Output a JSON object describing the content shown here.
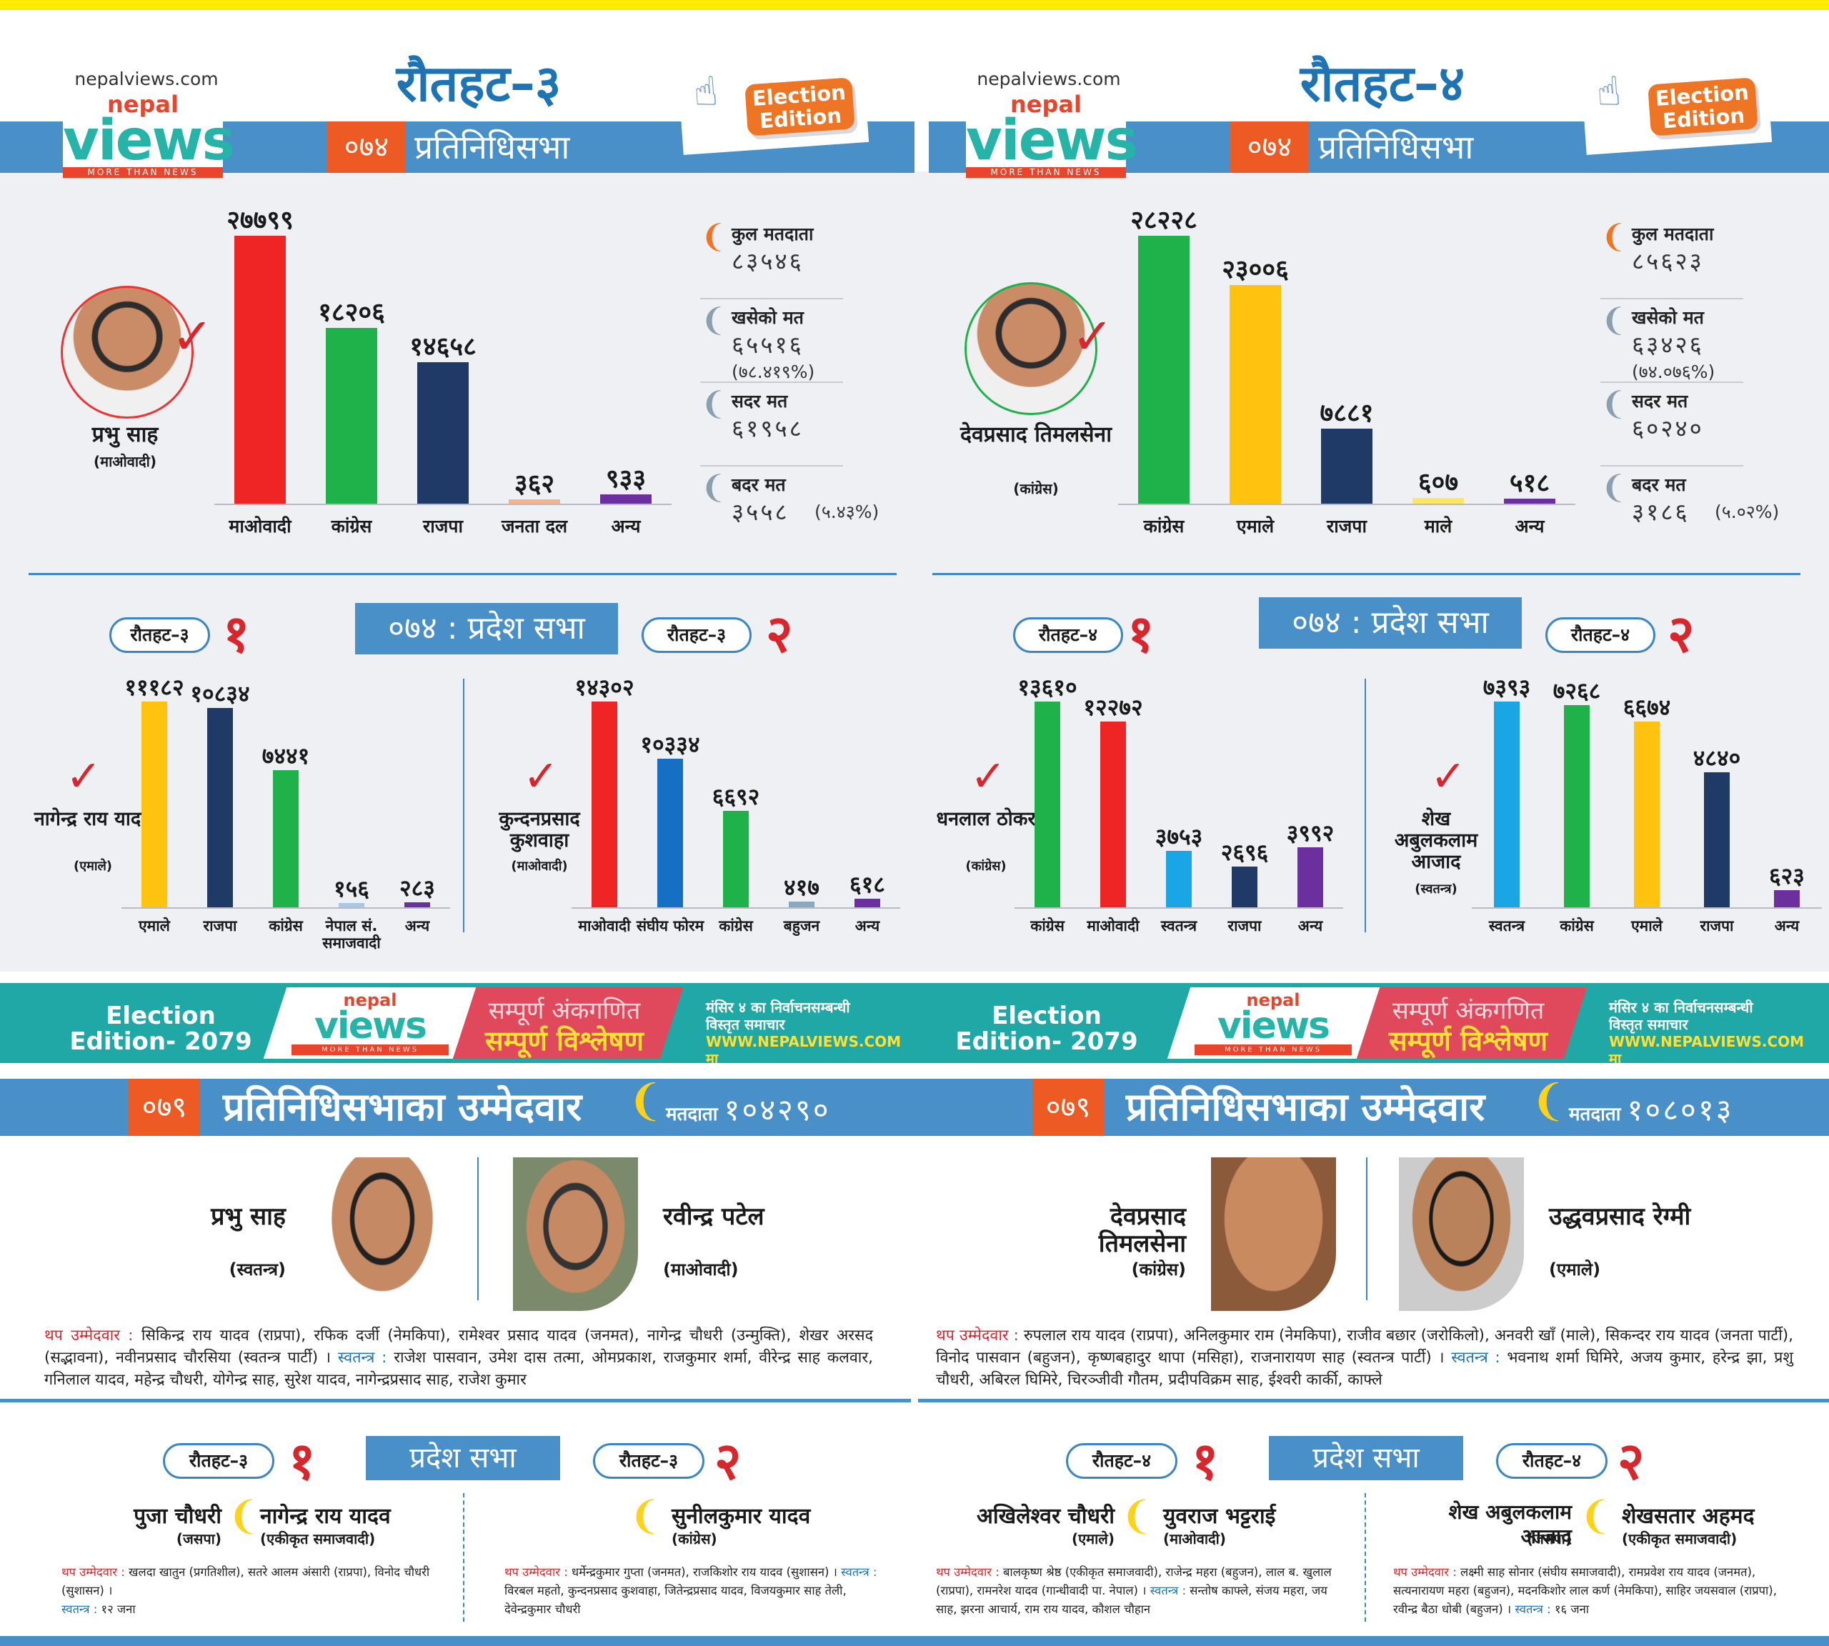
{
  "site": "nepalviews.com",
  "logo": {
    "nepal": "nepal",
    "views": "views",
    "tagline": "MORE THAN NEWS"
  },
  "election_edition": "Election Edition",
  "left": {
    "title": "रौतहट–३",
    "year": "०७४",
    "house_label": "प्रतिनिधिसभा",
    "winner": {
      "name": "प्रभु साह",
      "party": "(माओवादी)"
    },
    "chart_data": {
      "type": "bar",
      "categories": [
        "माओवादी",
        "कांग्रेस",
        "राजपा",
        "जनता दल",
        "अन्य"
      ],
      "values": [
        27799,
        18206,
        14658,
        362,
        933
      ],
      "value_labels": [
        "२७७९९",
        "१८२०६",
        "१४६५८",
        "३६२",
        "९३३"
      ],
      "colors": [
        "#ef2424",
        "#1fb24a",
        "#1f3a66",
        "#f3b48d",
        "#6b2f9e"
      ]
    },
    "stats": [
      {
        "label": "कुल मतदाता",
        "value": "८३५४६",
        "pct": ""
      },
      {
        "label": "खसेको मत",
        "value": "६५५१६",
        "pct": "(७८.४१९%)"
      },
      {
        "label": "सदर मत",
        "value": "६१९५८",
        "pct": ""
      },
      {
        "label": "बदर मत",
        "value": "३५५८",
        "pct": "(५.४३%)"
      }
    ],
    "pradesh_title": "०७४ : प्रदेश सभा",
    "p1": {
      "pill": "रौतहट–३",
      "num": "१",
      "winner": {
        "name": "नागेन्द्र राय यादव",
        "party": "(एमाले)"
      },
      "chart_data": {
        "type": "bar",
        "categories": [
          "एमाले",
          "राजपा",
          "कांग्रेस",
          "नेपाल सं. समाजवादी",
          "अन्य"
        ],
        "values": [
          11182,
          10834,
          7441,
          156,
          283
        ],
        "value_labels": [
          "१११८२",
          "१०८३४",
          "७४४१",
          "१५६",
          "२८३"
        ],
        "colors": [
          "#ffc20e",
          "#1f3a66",
          "#1fb24a",
          "#a8c8e8",
          "#6b2f9e"
        ]
      }
    },
    "p2": {
      "pill": "रौतहट–३",
      "num": "२",
      "winner": {
        "name": "कुन्दनप्रसाद कुशवाहा",
        "party": "(माओवादी)"
      },
      "chart_data": {
        "type": "bar",
        "categories": [
          "माओवादी",
          "संघीय फोरम",
          "कांग्रेस",
          "बहुजन",
          "अन्य"
        ],
        "values": [
          14302,
          10334,
          6692,
          417,
          618
        ],
        "value_labels": [
          "१४३०२",
          "१०३३४",
          "६६९२",
          "४१७",
          "६१८"
        ],
        "colors": [
          "#ef2424",
          "#1570c4",
          "#1fb24a",
          "#8aa8c0",
          "#6b2f9e"
        ]
      }
    },
    "c079": {
      "year": "०७९",
      "heading": "प्रतिनिधिसभाका उम्मेदवार",
      "voters_label": "मतदाता",
      "voters": "१०४२९०",
      "cand1": {
        "name": "प्रभु साह",
        "party": "(स्वतन्त्र)"
      },
      "cand2": {
        "name": "रवीन्द्र पटेल",
        "party": "(माओवादी)"
      },
      "extra_label": "थप उम्मेदवार :",
      "extra": "सिकिन्द्र राय यादव (राप्रपा), रफिक दर्जी (नेमकिपा), रामेश्वर प्रसाद यादव (जनमत), नागेन्द्र चौधरी (उन्मुक्ति), शेखर अरसद (सद्भावना), नवीनप्रसाद चौरसिया (स्वतन्त्र पार्टी) ।",
      "indep_label": "स्वतन्त्र :",
      "indep": "राजेश पासवान, उमेश दास तत्मा, ओमप्रकाश, राजकुमार शर्मा, वीरेन्द्र साह कलवार, गनिलाल यादव, महेन्द्र चौधरी, योगेन्द्र साह, सुरेश यादव, नागेन्द्रप्रसाद साह, राजेश कुमार"
    },
    "pradesh079": {
      "box": "प्रदेश सभा",
      "p1": {
        "pill": "रौतहट–३",
        "num": "१",
        "a": {
          "name": "पुजा चौधरी",
          "party": "(जसपा)"
        },
        "b": {
          "name": "नागेन्द्र राय यादव",
          "party": "(एकीकृत समाजवादी)"
        },
        "extra_label": "थप उम्मेदवार :",
        "extra": "खलदा खातुन (प्रगतिशील), सतरे आलम अंसारी (राप्रपा), विनोद चौधरी (सुशासन) ।",
        "indep_label": "स्वतन्त्र :",
        "indep": "१२ जना"
      },
      "p2": {
        "pill": "रौतहट–३",
        "num": "२",
        "a": {
          "name": "सुनीलकुमार यादव",
          "party": "(कांग्रेस)"
        },
        "extra_label": "थप उम्मेदवार :",
        "extra": "धर्मेन्द्रकुमार गुप्ता (जनमत), राजकिशोर राय यादव (सुशासन) ।",
        "indep_label": "स्वतन्त्र :",
        "indep": "विरबल महतो, कुन्दनप्रसाद कुशवाहा, जितेन्द्रप्रसाद यादव, विजयकुमार साह तेली, देवेन्द्रकुमार चौधरी"
      }
    }
  },
  "right": {
    "title": "रौतहट–४",
    "year": "०७४",
    "house_label": "प्रतिनिधिसभा",
    "winner": {
      "name": "देवप्रसाद तिमलसेना",
      "party": "(कांग्रेस)"
    },
    "chart_data": {
      "type": "bar",
      "categories": [
        "कांग्रेस",
        "एमाले",
        "राजपा",
        "माले",
        "अन्य"
      ],
      "values": [
        28228,
        23006,
        7881,
        607,
        518
      ],
      "value_labels": [
        "२८२२८",
        "२३००६",
        "७८८१",
        "६०७",
        "५१८"
      ],
      "colors": [
        "#1fb24a",
        "#ffc20e",
        "#1f3a66",
        "#ffe566",
        "#6b2f9e"
      ]
    },
    "stats": [
      {
        "label": "कुल मतदाता",
        "value": "८५६२३",
        "pct": ""
      },
      {
        "label": "खसेको मत",
        "value": "६३४२६",
        "pct": "(७४.०७६%)"
      },
      {
        "label": "सदर मत",
        "value": "६०२४०",
        "pct": ""
      },
      {
        "label": "बदर मत",
        "value": "३१८६",
        "pct": "(५.०२%)"
      }
    ],
    "pradesh_title": "०७४ : प्रदेश सभा",
    "p1": {
      "pill": "रौतहट–४",
      "num": "१",
      "winner": {
        "name": "धनलाल ठोकर",
        "party": "(कांग्रेस)"
      },
      "chart_data": {
        "type": "bar",
        "categories": [
          "कांग्रेस",
          "माओवादी",
          "स्वतन्त्र",
          "राजपा",
          "अन्य"
        ],
        "values": [
          13610,
          12272,
          3753,
          2696,
          3992
        ],
        "value_labels": [
          "१३६१०",
          "१२२७२",
          "३७५३",
          "२६९६",
          "३९९२"
        ],
        "colors": [
          "#1fb24a",
          "#ef2424",
          "#1aa6e4",
          "#1f3a66",
          "#6b2f9e"
        ]
      }
    },
    "p2": {
      "pill": "रौतहट–४",
      "num": "२",
      "winner": {
        "name": "शेख अबुलकलाम आजाद",
        "party": "(स्वतन्त्र)"
      },
      "chart_data": {
        "type": "bar",
        "categories": [
          "स्वतन्त्र",
          "कांग्रेस",
          "एमाले",
          "राजपा",
          "अन्य"
        ],
        "values": [
          7393,
          7268,
          6674,
          4840,
          623
        ],
        "value_labels": [
          "७३९३",
          "७२६८",
          "६६७४",
          "४८४०",
          "६२३"
        ],
        "colors": [
          "#1aa6e4",
          "#1fb24a",
          "#ffc20e",
          "#1f3a66",
          "#6b2f9e"
        ]
      }
    },
    "c079": {
      "year": "०७९",
      "heading": "प्रतिनिधिसभाका उम्मेदवार",
      "voters_label": "मतदाता",
      "voters": "१०८०१३",
      "cand1": {
        "name": "देवप्रसाद तिमलसेना",
        "party": "(कांग्रेस)"
      },
      "cand2": {
        "name": "उद्धवप्रसाद रेग्मी",
        "party": "(एमाले)"
      },
      "extra_label": "थप उम्मेदवार :",
      "extra": "रुपलाल राय यादव (राप्रपा), अनिलकुमार राम (नेमकिपा), राजीव बछार (जरोकिलो), अनवरी खाँ (माले), सिकन्दर राय यादव (जनता पार्टी), विनोद पासवान (बहुजन), कृष्णबहादुर थापा (मसिहा), राजनारायण साह (स्वतन्त्र पार्टी) ।",
      "indep_label": "स्वतन्त्र :",
      "indep": "भवनाथ शर्मा घिमिरे, अजय कुमार, हरेन्द्र झा, प्रशु चौधरी, अबिरल घिमिरे, चिरञ्जीवी गौतम, प्रदीपविक्रम साह, ईश्वरी कार्की, काफ्ले"
    },
    "pradesh079": {
      "box": "प्रदेश सभा",
      "p1": {
        "pill": "रौतहट–४",
        "num": "१",
        "a": {
          "name": "अखिलेश्वर चौधरी",
          "party": "(एमाले)"
        },
        "b": {
          "name": "युवराज भट्टराई",
          "party": "(माओवादी)"
        },
        "extra_label": "थप उम्मेदवार :",
        "extra": "बालकृष्ण श्रेष्ठ (एकीकृत समाजवादी), राजेन्द्र महरा (बहुजन), लाल ब. खुलाल (राप्रपा), रामनरेश यादव (गान्धीवादी पा. नेपाल) ।",
        "indep_label": "स्वतन्त्र :",
        "indep": "सन्तोष काफ्ले, संजय महरा, जय साह, झरना आचार्य, राम राय यादव, कौशल चौहान"
      },
      "p2": {
        "pill": "रौतहट–४",
        "num": "२",
        "a": {
          "name": "शेख अबुलकलाम आजाद",
          "party": "(जसपा)"
        },
        "b": {
          "name": "शेखसतार अहमद",
          "party": "(एकीकृत समाजवादी)"
        },
        "extra_label": "थप उम्मेदवार :",
        "extra": "लक्ष्मी साह सोनार (संघीय समाजवादी), रामप्रवेश राय यादव (जनमत), सत्यनारायण महरा (बहुजन), मदनकिशोर लाल कर्ण (नेमकिपा), साहिर जयसवाल (राप्रपा), रवीन्द्र बैठा धोबी (बहुजन) ।",
        "indep_label": "स्वतन्त्र :",
        "indep": "१६ जना"
      }
    }
  },
  "ad": {
    "edition": "Election Edition- 2079",
    "line1": "सम्पूर्ण अंकगणित",
    "line2": "सम्पूर्ण विश्लेषण",
    "info1": "मंसिर ४ का निर्वाचनसम्बन्धी",
    "info2": "विस्तृत समाचार",
    "url": "WWW.NEPALVIEWS.COM मा"
  }
}
